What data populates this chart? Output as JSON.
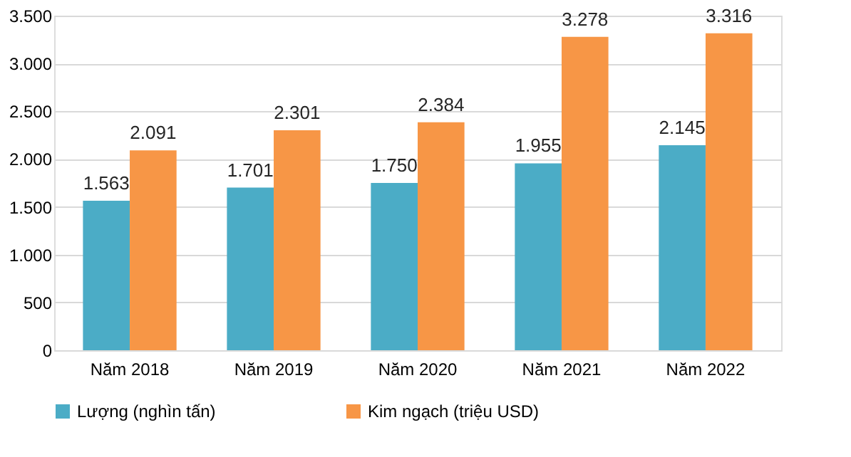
{
  "chart_data": {
    "type": "bar",
    "categories": [
      "Năm 2018",
      "Năm 2019",
      "Năm 2020",
      "Năm 2021",
      "Năm 2022"
    ],
    "series": [
      {
        "name": "Lượng (nghìn tấn)",
        "color": "#4bacc6",
        "values": [
          1563,
          1701,
          1750,
          1955,
          2145
        ],
        "value_labels": [
          "1.563",
          "1.701",
          "1.750",
          "1.955",
          "2.145"
        ]
      },
      {
        "name": "Kim ngạch (triệu USD)",
        "color": "#f79646",
        "values": [
          2091,
          2301,
          2384,
          3278,
          3316
        ],
        "value_labels": [
          "2.091",
          "2.301",
          "2.384",
          "3.278",
          "3.316"
        ]
      }
    ],
    "ylim": [
      0,
      3500
    ],
    "yticks": [
      0,
      500,
      {
        "value": 1000,
        "label": "1.000"
      },
      {
        "value": 1500,
        "label": "1.500"
      },
      {
        "value": 2000,
        "label": "2.000"
      },
      {
        "value": 2500,
        "label": "2.500"
      },
      {
        "value": 3000,
        "label": "3.000"
      },
      {
        "value": 3500,
        "label": "3.500"
      }
    ],
    "grid": "y",
    "legend": "bottom"
  }
}
